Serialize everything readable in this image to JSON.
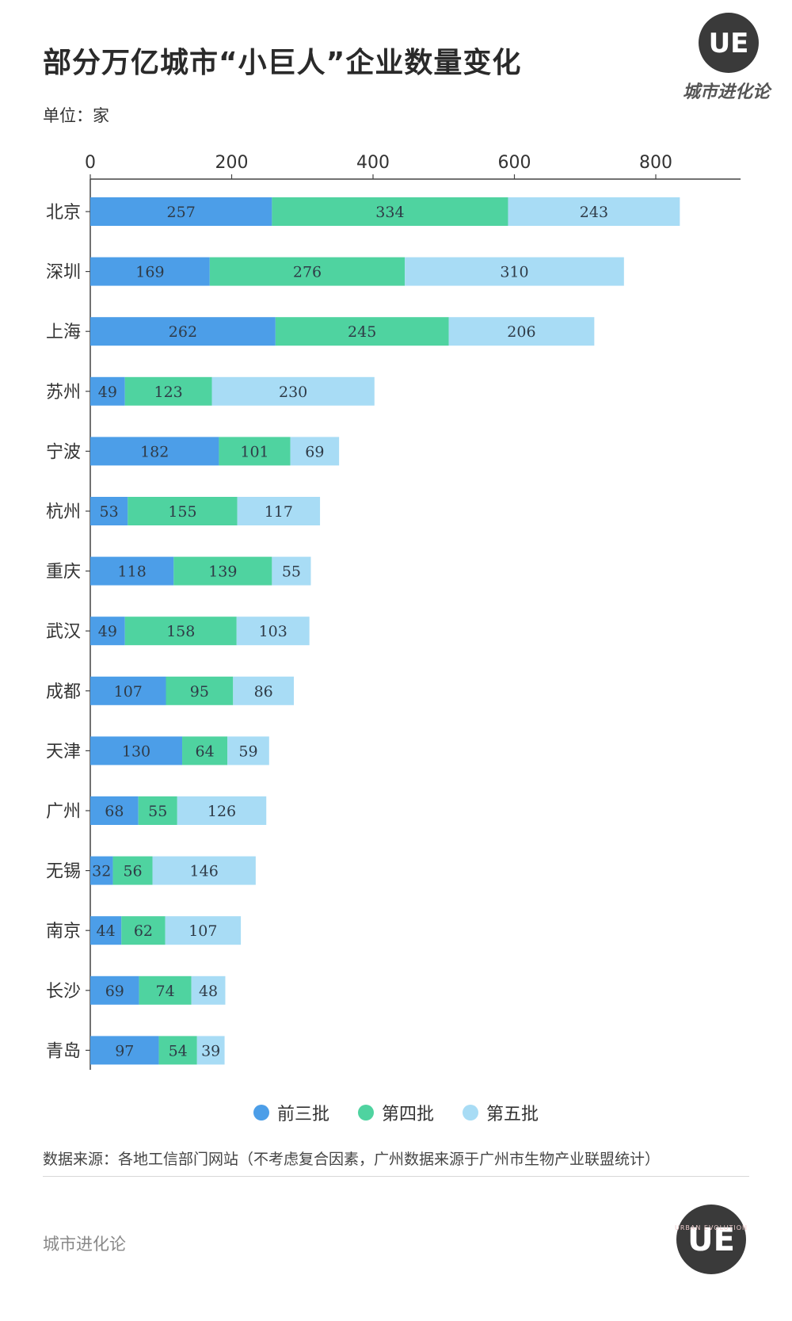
{
  "title": "部分万亿城市“小巨人”企业数量变化",
  "unit": "单位：家",
  "brand": {
    "logo_letters": "UE",
    "logo_text": "城市进化论",
    "footer_text": "城市进化论",
    "footer_logo_ring_text": "URBAN EVOLUTION"
  },
  "source": "数据来源：各地工信部门网站（不考虑复合因素，广州数据来源于广州市生物产业联盟统计）",
  "colors": {
    "series1": "#4c9ee8",
    "series2": "#4fd3a0",
    "series3": "#a8dcf5",
    "axis": "#444444"
  },
  "chart_data": {
    "type": "bar",
    "orientation": "horizontal",
    "stacked": true,
    "categories": [
      "北京",
      "深圳",
      "上海",
      "苏州",
      "宁波",
      "杭州",
      "重庆",
      "武汉",
      "成都",
      "天津",
      "广州",
      "无锡",
      "南京",
      "长沙",
      "青岛"
    ],
    "series": [
      {
        "name": "前三批",
        "values": [
          257,
          169,
          262,
          49,
          182,
          53,
          118,
          49,
          107,
          130,
          68,
          32,
          44,
          69,
          97
        ]
      },
      {
        "name": "第四批",
        "values": [
          334,
          276,
          245,
          123,
          101,
          155,
          139,
          158,
          95,
          64,
          55,
          56,
          62,
          74,
          54
        ]
      },
      {
        "name": "第五批",
        "values": [
          243,
          310,
          206,
          230,
          69,
          117,
          55,
          103,
          86,
          59,
          126,
          146,
          107,
          48,
          39
        ]
      }
    ],
    "xlim": [
      0,
      920
    ],
    "xticks": [
      0,
      200,
      400,
      600,
      800
    ],
    "axis_position": "top",
    "legend_position": "bottom-center",
    "grid": false
  }
}
